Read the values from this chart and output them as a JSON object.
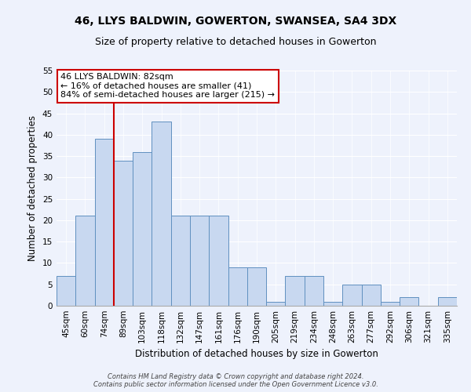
{
  "title1": "46, LLYS BALDWIN, GOWERTON, SWANSEA, SA4 3DX",
  "title2": "Size of property relative to detached houses in Gowerton",
  "xlabel": "Distribution of detached houses by size in Gowerton",
  "ylabel": "Number of detached properties",
  "categories": [
    "45sqm",
    "60sqm",
    "74sqm",
    "89sqm",
    "103sqm",
    "118sqm",
    "132sqm",
    "147sqm",
    "161sqm",
    "176sqm",
    "190sqm",
    "205sqm",
    "219sqm",
    "234sqm",
    "248sqm",
    "263sqm",
    "277sqm",
    "292sqm",
    "306sqm",
    "321sqm",
    "335sqm"
  ],
  "values": [
    7,
    21,
    39,
    34,
    36,
    43,
    21,
    21,
    21,
    9,
    9,
    1,
    7,
    7,
    1,
    5,
    5,
    1,
    2,
    0,
    2
  ],
  "bar_color": "#c8d8f0",
  "bar_edge_color": "#6090c0",
  "annotation_box_text": "46 LLYS BALDWIN: 82sqm\n← 16% of detached houses are smaller (41)\n84% of semi-detached houses are larger (215) →",
  "red_line_color": "#cc0000",
  "red_line_x": 2.5,
  "ylim": [
    0,
    55
  ],
  "yticks": [
    0,
    5,
    10,
    15,
    20,
    25,
    30,
    35,
    40,
    45,
    50,
    55
  ],
  "footer1": "Contains HM Land Registry data © Crown copyright and database right 2024.",
  "footer2": "Contains public sector information licensed under the Open Government Licence v3.0.",
  "bg_color": "#eef2fc",
  "plot_bg_color": "#eef2fc",
  "grid_color": "#ffffff",
  "title1_fontsize": 10,
  "title2_fontsize": 9,
  "tick_fontsize": 7.5,
  "xlabel_fontsize": 8.5,
  "ylabel_fontsize": 8.5,
  "annotation_fontsize": 8,
  "footer_fontsize": 6
}
